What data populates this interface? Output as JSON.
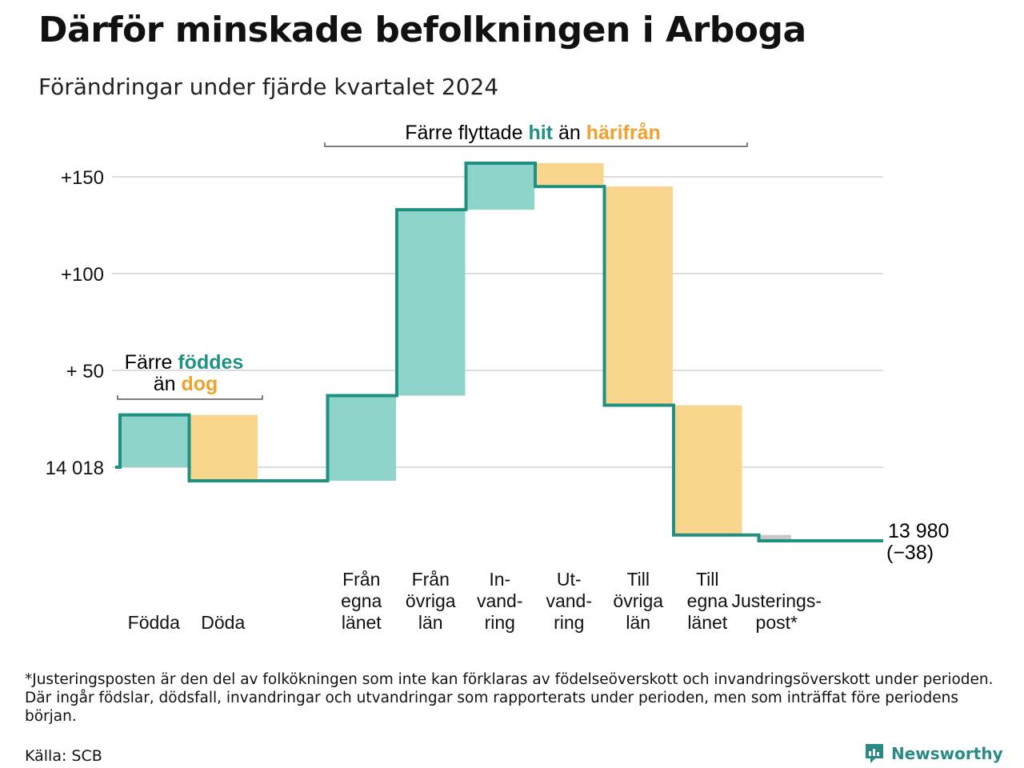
{
  "header": {
    "title": "Därför minskade befolkningen i Arboga",
    "subtitle": "Förändringar under fjärde kvartalet 2024"
  },
  "colors": {
    "positive": "#8fd4cb",
    "negative": "#fad58d",
    "line": "#1f9183",
    "adjustment": "#c8c8c8",
    "grid": "#dddddd",
    "hit_text": "#1f9183",
    "harifran_text": "#f0a22e"
  },
  "chart_data": {
    "type": "waterfall",
    "start": {
      "value": 14018,
      "label": "14 018"
    },
    "y_ticks": [
      {
        "offset": 0,
        "label": "14 018"
      },
      {
        "offset": 50,
        "label": "+ 50"
      },
      {
        "offset": 100,
        "label": "+100"
      },
      {
        "offset": 150,
        "label": "+150"
      }
    ],
    "ylim": [
      -42,
      160
    ],
    "steps": [
      {
        "label": [
          "Födda"
        ],
        "change": 27,
        "kind": "positive"
      },
      {
        "label": [
          "Döda"
        ],
        "change": -34,
        "kind": "negative"
      },
      {
        "label": [],
        "change": 0,
        "kind": "gap"
      },
      {
        "label": [
          "Från",
          "egna",
          "länet"
        ],
        "change": 44,
        "kind": "positive"
      },
      {
        "label": [
          "Från",
          "övriga",
          "län"
        ],
        "change": 96,
        "kind": "positive"
      },
      {
        "label": [
          "In-",
          "vand-",
          "ring"
        ],
        "change": 24,
        "kind": "positive"
      },
      {
        "label": [
          "Ut-",
          "vand-",
          "ring"
        ],
        "change": -12,
        "kind": "negative"
      },
      {
        "label": [
          "Till",
          "övriga",
          "län"
        ],
        "change": -113,
        "kind": "negative"
      },
      {
        "label": [
          "Till",
          "egna",
          "länet"
        ],
        "change": -67,
        "kind": "negative"
      },
      {
        "label": [
          "Justerings-",
          "post*"
        ],
        "change": -3,
        "kind": "adjustment"
      }
    ],
    "end": {
      "value": "13 980",
      "change": "(−38)"
    },
    "annotations": {
      "births": {
        "prefix": "Färre",
        "highlight": "föddes",
        "line2_prefix": "än",
        "line2_highlight": "dog"
      },
      "moves": {
        "prefix": "Färre flyttade",
        "highlight1": "hit",
        "middle": "än",
        "highlight2": "härifrån"
      }
    }
  },
  "footnote": "*Justeringsposten är den del av folkökningen som inte kan förklaras av födelseöverskott och invandringsöverskott under perioden. Där ingår födslar, dödsfall, invandringar och utvandringar som rapporterats under perioden, men som inträffat före periodens början.",
  "source": "Källa: SCB",
  "brand": {
    "name": "Newsworthy",
    "icon": "newsworthy-logo-icon"
  }
}
